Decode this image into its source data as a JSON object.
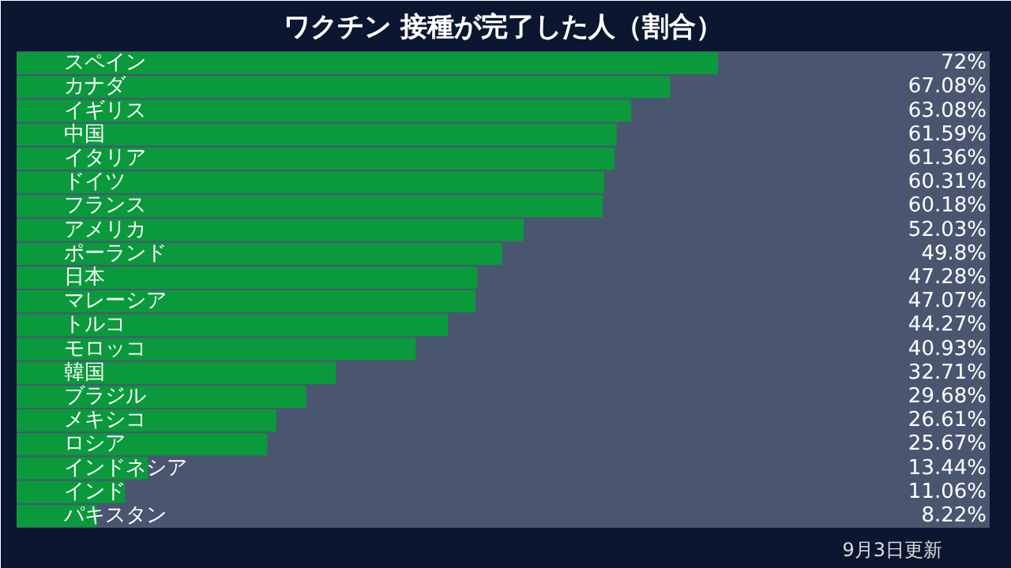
{
  "chart_data": {
    "type": "bar",
    "orientation": "horizontal",
    "title": "ワクチン 接種が完了した人（割合）",
    "categories": [
      "スペイン",
      "カナダ",
      "イギリス",
      "中国",
      "イタリア",
      "ドイツ",
      "フランス",
      "アメリカ",
      "ポーランド",
      "日本",
      "マレーシア",
      "トルコ",
      "モロッコ",
      "韓国",
      "ブラジル",
      "メキシコ",
      "ロシア",
      "インドネシア",
      "インド",
      "パキスタン"
    ],
    "values": [
      72,
      67.08,
      63.08,
      61.59,
      61.36,
      60.31,
      60.18,
      52.03,
      49.8,
      47.28,
      47.07,
      44.27,
      40.93,
      32.71,
      29.68,
      26.61,
      25.67,
      13.44,
      11.06,
      8.22
    ],
    "value_labels": [
      "72%",
      "67.08%",
      "63.08%",
      "61.59%",
      "61.36%",
      "60.31%",
      "60.18%",
      "52.03%",
      "49.8%",
      "47.28%",
      "47.07%",
      "44.27%",
      "40.93%",
      "32.71%",
      "29.68%",
      "26.61%",
      "25.67%",
      "13.44%",
      "11.06%",
      "8.22%"
    ],
    "color": "#0a9a3c",
    "xlim": [
      0,
      100
    ],
    "tick_labels": false,
    "grid": false,
    "annotations": [
      "9月3日更新"
    ]
  }
}
